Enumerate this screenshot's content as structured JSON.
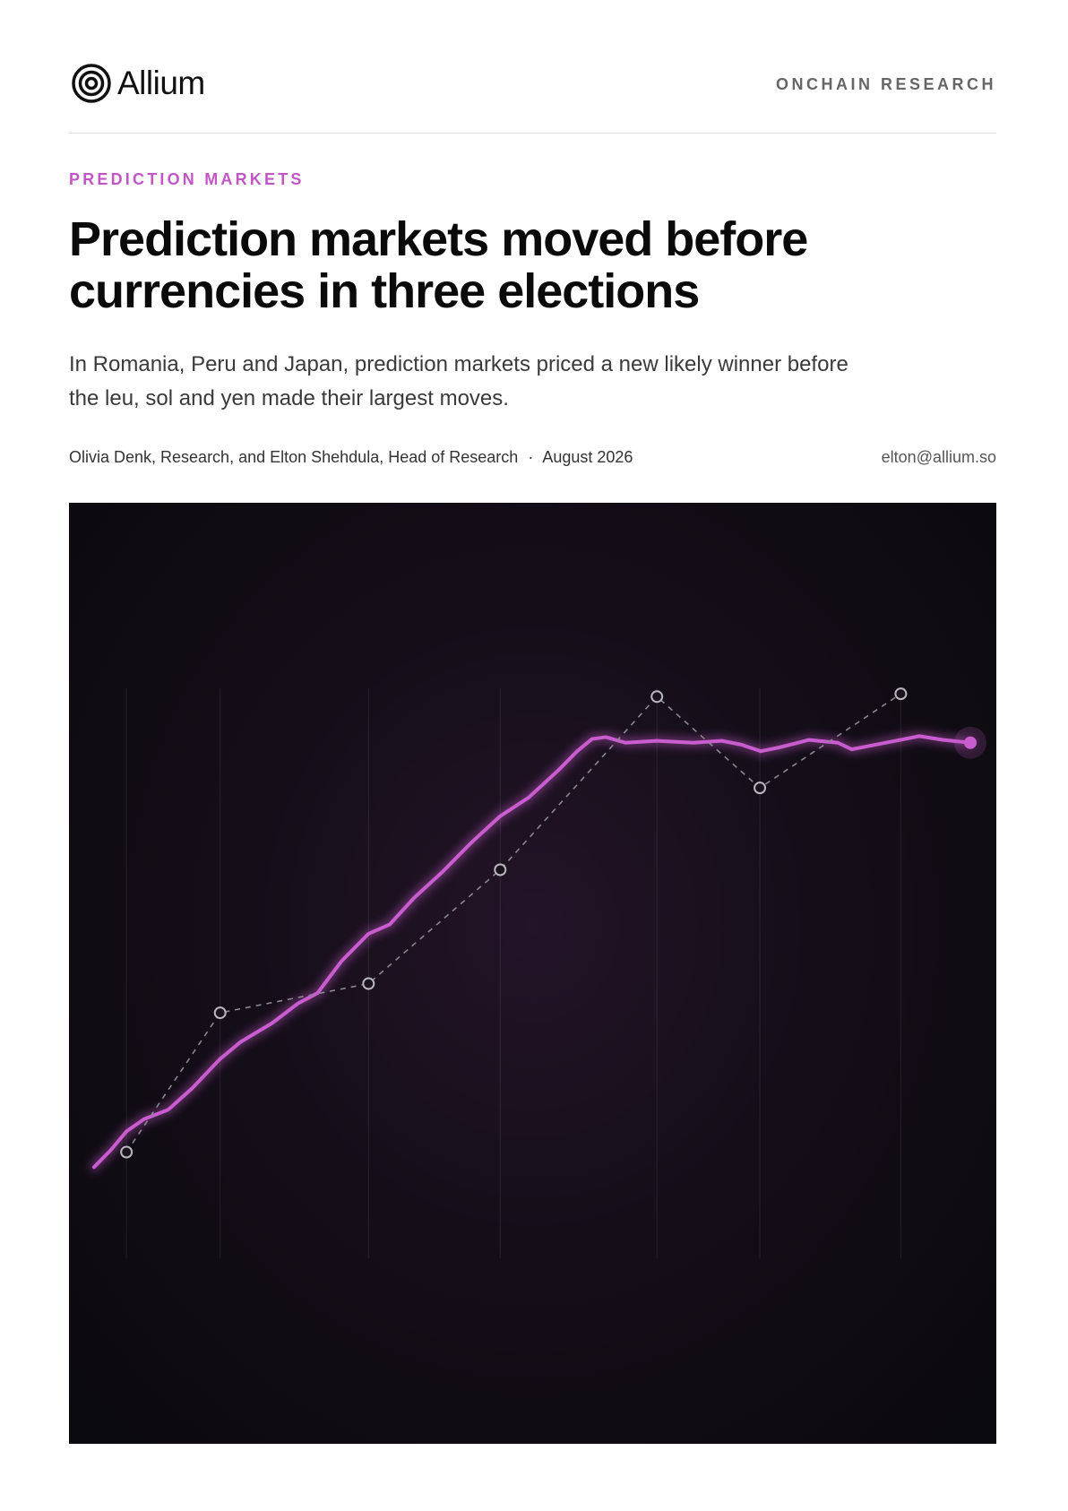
{
  "header": {
    "brand": "Allium",
    "section": "ONCHAIN RESEARCH"
  },
  "article": {
    "kicker": "PREDICTION MARKETS",
    "title": "Prediction markets moved before currencies in three elections",
    "subtitle": "In Romania, Peru and Japan, prediction markets priced a new likely winner before the leu, sol and yen made their largest moves.",
    "byline": "Olivia Denk, Research, and Elton Shehdula, Head of Research",
    "separator": "·",
    "date": "August 2026",
    "email": "elton@allium.so"
  },
  "chart_data": {
    "type": "line",
    "xlim": [
      0,
      100
    ],
    "ylim": [
      0,
      100
    ],
    "series": [
      {
        "color": "#c95ccf",
        "style": "solid",
        "x": [
          2.7,
          4.5,
          6.2,
          8.1,
          10.7,
          13.3,
          16.3,
          18.5,
          21.9,
          24.7,
          26.8,
          29.4,
          32.3,
          34.6,
          37.2,
          40.3,
          43.4,
          46.5,
          49.6,
          52.8,
          54.8,
          56.4,
          57.9,
          60.0,
          63.4,
          67.3,
          70.4,
          72.5,
          74.6,
          76.6,
          79.8,
          82.9,
          84.4,
          86.0,
          88.6,
          91.7,
          94.3,
          97.2
        ],
        "values": [
          29.4,
          31.2,
          33.2,
          34.5,
          35.5,
          37.8,
          40.9,
          42.7,
          44.7,
          46.8,
          47.9,
          51.3,
          54.2,
          55.2,
          58.0,
          60.8,
          63.9,
          66.7,
          68.7,
          71.6,
          73.6,
          74.9,
          75.1,
          74.5,
          74.7,
          74.5,
          74.7,
          74.3,
          73.6,
          74.0,
          74.8,
          74.5,
          73.8,
          74.1,
          74.6,
          75.2,
          74.8,
          74.5
        ]
      },
      {
        "color": "#8a8790",
        "style": "dashed",
        "x": [
          6.2,
          16.3,
          32.3,
          46.5,
          63.4,
          74.5,
          89.7
        ],
        "values": [
          31.0,
          45.8,
          48.9,
          61.0,
          79.4,
          69.7,
          79.7
        ]
      }
    ]
  }
}
